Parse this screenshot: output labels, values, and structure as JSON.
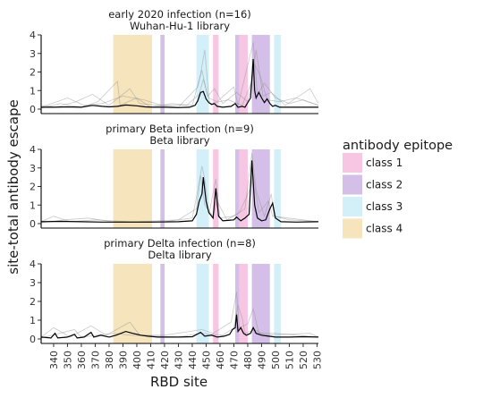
{
  "chart_data": {
    "type": "line",
    "ylabel": "site-total antibody escape",
    "xlabel": "RBD site",
    "xlim": [
      331,
      531
    ],
    "ylim": [
      -0.3,
      4
    ],
    "y_ticks": [
      0,
      1,
      2,
      3,
      4
    ],
    "x_ticks": [
      340,
      350,
      360,
      370,
      380,
      390,
      400,
      410,
      420,
      430,
      440,
      450,
      460,
      470,
      480,
      490,
      500,
      510,
      520,
      530
    ],
    "legend": {
      "title": "antibody epitope",
      "position": "right",
      "items": [
        {
          "label": "class 1",
          "color": "#f6c6e3"
        },
        {
          "label": "class 2",
          "color": "#d4bfe8"
        },
        {
          "label": "class 3",
          "color": "#d3f0f8"
        },
        {
          "label": "class 4",
          "color": "#f5e4bc"
        }
      ]
    },
    "epitope_regions": [
      {
        "class": "class 4",
        "start": 383,
        "end": 411
      },
      {
        "class": "class 2",
        "start": 417,
        "end": 420
      },
      {
        "class": "class 3",
        "start": 443,
        "end": 452
      },
      {
        "class": "class 1",
        "start": 455,
        "end": 459
      },
      {
        "class": "class 2",
        "start": 471,
        "end": 474
      },
      {
        "class": "class 1",
        "start": 474,
        "end": 480
      },
      {
        "class": "class 2",
        "start": 483,
        "end": 496
      },
      {
        "class": "class 3",
        "start": 499,
        "end": 504
      }
    ],
    "panels": [
      {
        "title_line1": "early 2020 infection (n=16)",
        "title_line2": "Wuhan-Hu-1 library",
        "mean_series": [
          [
            331,
            0.1
          ],
          [
            340,
            0.1
          ],
          [
            350,
            0.12
          ],
          [
            360,
            0.1
          ],
          [
            368,
            0.2
          ],
          [
            375,
            0.15
          ],
          [
            380,
            0.12
          ],
          [
            386,
            0.15
          ],
          [
            392,
            0.22
          ],
          [
            400,
            0.18
          ],
          [
            406,
            0.12
          ],
          [
            412,
            0.1
          ],
          [
            420,
            0.1
          ],
          [
            430,
            0.08
          ],
          [
            438,
            0.1
          ],
          [
            442,
            0.2
          ],
          [
            444,
            0.45
          ],
          [
            446,
            0.9
          ],
          [
            448,
            0.95
          ],
          [
            450,
            0.55
          ],
          [
            452,
            0.35
          ],
          [
            454,
            0.25
          ],
          [
            456,
            0.3
          ],
          [
            458,
            0.15
          ],
          [
            462,
            0.1
          ],
          [
            468,
            0.15
          ],
          [
            471,
            0.3
          ],
          [
            473,
            0.1
          ],
          [
            476,
            0.15
          ],
          [
            478,
            0.1
          ],
          [
            482,
            0.6
          ],
          [
            484,
            2.7
          ],
          [
            485,
            1.0
          ],
          [
            486,
            0.6
          ],
          [
            488,
            0.9
          ],
          [
            490,
            0.6
          ],
          [
            492,
            0.35
          ],
          [
            494,
            0.55
          ],
          [
            496,
            0.3
          ],
          [
            498,
            0.15
          ],
          [
            500,
            0.2
          ],
          [
            503,
            0.1
          ],
          [
            510,
            0.1
          ],
          [
            520,
            0.1
          ],
          [
            531,
            0.1
          ]
        ],
        "individual_series": [
          [
            [
              331,
              0.05
            ],
            [
              345,
              0.3
            ],
            [
              360,
              0.1
            ],
            [
              372,
              0.4
            ],
            [
              386,
              1.5
            ],
            [
              388,
              0.2
            ],
            [
              400,
              0.6
            ],
            [
              410,
              0.1
            ],
            [
              425,
              0.3
            ],
            [
              440,
              0.2
            ],
            [
              446,
              1.9
            ],
            [
              449,
              3.2
            ],
            [
              452,
              0.6
            ],
            [
              458,
              0.4
            ],
            [
              470,
              1.2
            ],
            [
              473,
              0.2
            ],
            [
              484,
              3.6
            ],
            [
              487,
              0.8
            ],
            [
              492,
              1.4
            ],
            [
              500,
              0.6
            ],
            [
              510,
              0.3
            ],
            [
              520,
              0.5
            ],
            [
              531,
              0.2
            ]
          ],
          [
            [
              331,
              0.1
            ],
            [
              350,
              0.6
            ],
            [
              362,
              0.2
            ],
            [
              375,
              0.3
            ],
            [
              390,
              0.7
            ],
            [
              405,
              0.5
            ],
            [
              418,
              0.2
            ],
            [
              430,
              0.1
            ],
            [
              444,
              1.2
            ],
            [
              447,
              2.1
            ],
            [
              451,
              0.7
            ],
            [
              456,
              1.1
            ],
            [
              462,
              0.3
            ],
            [
              472,
              0.9
            ],
            [
              480,
              0.4
            ],
            [
              485,
              2.4
            ],
            [
              489,
              1.8
            ],
            [
              494,
              0.5
            ],
            [
              503,
              0.4
            ],
            [
              515,
              0.6
            ],
            [
              531,
              0.2
            ]
          ],
          [
            [
              331,
              0.2
            ],
            [
              342,
              0.1
            ],
            [
              356,
              0.4
            ],
            [
              368,
              0.8
            ],
            [
              380,
              0.2
            ],
            [
              395,
              1.1
            ],
            [
              402,
              0.3
            ],
            [
              415,
              0.2
            ],
            [
              436,
              0.2
            ],
            [
              445,
              0.8
            ],
            [
              448,
              1.6
            ],
            [
              453,
              0.3
            ],
            [
              466,
              0.5
            ],
            [
              476,
              0.2
            ],
            [
              483,
              1.5
            ],
            [
              486,
              3.2
            ],
            [
              491,
              0.7
            ],
            [
              497,
              0.9
            ],
            [
              507,
              0.2
            ],
            [
              525,
              1.1
            ],
            [
              531,
              0.3
            ]
          ]
        ]
      },
      {
        "title_line1": "primary Beta infection (n=9)",
        "title_line2": "Beta library",
        "mean_series": [
          [
            331,
            0.1
          ],
          [
            345,
            0.12
          ],
          [
            360,
            0.1
          ],
          [
            375,
            0.08
          ],
          [
            390,
            0.08
          ],
          [
            410,
            0.08
          ],
          [
            430,
            0.1
          ],
          [
            440,
            0.15
          ],
          [
            443,
            0.5
          ],
          [
            445,
            1.2
          ],
          [
            447,
            1.6
          ],
          [
            448,
            2.5
          ],
          [
            450,
            1.2
          ],
          [
            452,
            0.6
          ],
          [
            455,
            0.3
          ],
          [
            457,
            1.9
          ],
          [
            459,
            0.4
          ],
          [
            462,
            0.15
          ],
          [
            470,
            0.2
          ],
          [
            472,
            0.35
          ],
          [
            475,
            0.15
          ],
          [
            478,
            0.3
          ],
          [
            481,
            0.5
          ],
          [
            483,
            3.4
          ],
          [
            485,
            1.0
          ],
          [
            487,
            0.3
          ],
          [
            490,
            0.15
          ],
          [
            493,
            0.2
          ],
          [
            496,
            0.8
          ],
          [
            498,
            1.1
          ],
          [
            500,
            0.3
          ],
          [
            504,
            0.1
          ],
          [
            515,
            0.08
          ],
          [
            531,
            0.1
          ]
        ],
        "individual_series": [
          [
            [
              331,
              0.1
            ],
            [
              340,
              0.4
            ],
            [
              352,
              0.1
            ],
            [
              370,
              0.2
            ],
            [
              395,
              0.1
            ],
            [
              420,
              0.1
            ],
            [
              440,
              0.3
            ],
            [
              444,
              1.8
            ],
            [
              447,
              3.1
            ],
            [
              449,
              2.4
            ],
            [
              452,
              0.5
            ],
            [
              457,
              2.4
            ],
            [
              460,
              0.3
            ],
            [
              470,
              0.4
            ],
            [
              478,
              0.8
            ],
            [
              483,
              3.8
            ],
            [
              486,
              1.8
            ],
            [
              492,
              0.4
            ],
            [
              497,
              1.6
            ],
            [
              499,
              0.4
            ],
            [
              510,
              0.2
            ],
            [
              531,
              0.1
            ]
          ],
          [
            [
              331,
              0.05
            ],
            [
              348,
              0.2
            ],
            [
              365,
              0.3
            ],
            [
              382,
              0.1
            ],
            [
              400,
              0.1
            ],
            [
              430,
              0.2
            ],
            [
              443,
              0.8
            ],
            [
              446,
              2.6
            ],
            [
              449,
              1.0
            ],
            [
              455,
              0.4
            ],
            [
              458,
              1.2
            ],
            [
              465,
              0.2
            ],
            [
              474,
              0.6
            ],
            [
              482,
              1.9
            ],
            [
              484,
              2.6
            ],
            [
              488,
              0.6
            ],
            [
              495,
              1.2
            ],
            [
              498,
              0.4
            ],
            [
              520,
              0.2
            ],
            [
              531,
              0.1
            ]
          ]
        ]
      },
      {
        "title_line1": "primary Delta infection (n=8)",
        "title_line2": "Delta library",
        "mean_series": [
          [
            331,
            0.1
          ],
          [
            338,
            0.05
          ],
          [
            341,
            0.3
          ],
          [
            343,
            0.05
          ],
          [
            350,
            0.1
          ],
          [
            355,
            0.25
          ],
          [
            357,
            0.05
          ],
          [
            362,
            0.1
          ],
          [
            367,
            0.35
          ],
          [
            369,
            0.1
          ],
          [
            374,
            0.2
          ],
          [
            380,
            0.1
          ],
          [
            385,
            0.2
          ],
          [
            392,
            0.4
          ],
          [
            397,
            0.3
          ],
          [
            403,
            0.2
          ],
          [
            408,
            0.15
          ],
          [
            415,
            0.1
          ],
          [
            422,
            0.1
          ],
          [
            430,
            0.1
          ],
          [
            440,
            0.12
          ],
          [
            446,
            0.35
          ],
          [
            449,
            0.15
          ],
          [
            454,
            0.2
          ],
          [
            458,
            0.1
          ],
          [
            463,
            0.15
          ],
          [
            467,
            0.25
          ],
          [
            469,
            0.5
          ],
          [
            471,
            0.6
          ],
          [
            472,
            1.3
          ],
          [
            473,
            0.4
          ],
          [
            475,
            0.6
          ],
          [
            477,
            0.3
          ],
          [
            479,
            0.2
          ],
          [
            482,
            0.3
          ],
          [
            484,
            0.6
          ],
          [
            486,
            0.3
          ],
          [
            490,
            0.2
          ],
          [
            495,
            0.15
          ],
          [
            500,
            0.1
          ],
          [
            510,
            0.1
          ],
          [
            520,
            0.12
          ],
          [
            531,
            0.1
          ]
        ],
        "individual_series": [
          [
            [
              331,
              0.1
            ],
            [
              340,
              0.6
            ],
            [
              352,
              0.1
            ],
            [
              367,
              0.7
            ],
            [
              378,
              0.2
            ],
            [
              395,
              0.9
            ],
            [
              402,
              0.2
            ],
            [
              420,
              0.2
            ],
            [
              447,
              0.5
            ],
            [
              455,
              0.3
            ],
            [
              468,
              0.9
            ],
            [
              472,
              2.5
            ],
            [
              474,
              0.6
            ],
            [
              480,
              0.8
            ],
            [
              484,
              1.6
            ],
            [
              488,
              0.3
            ],
            [
              500,
              0.3
            ],
            [
              515,
              0.2
            ],
            [
              531,
              0.1
            ]
          ],
          [
            [
              331,
              0.05
            ],
            [
              355,
              0.5
            ],
            [
              360,
              0.1
            ],
            [
              383,
              0.3
            ],
            [
              396,
              0.2
            ],
            [
              430,
              0.1
            ],
            [
              446,
              0.3
            ],
            [
              462,
              0.2
            ],
            [
              470,
              0.6
            ],
            [
              473,
              1.8
            ],
            [
              476,
              1.1
            ],
            [
              478,
              0.3
            ],
            [
              485,
              0.5
            ],
            [
              492,
              0.2
            ],
            [
              525,
              0.3
            ],
            [
              531,
              0.1
            ]
          ]
        ]
      }
    ]
  }
}
